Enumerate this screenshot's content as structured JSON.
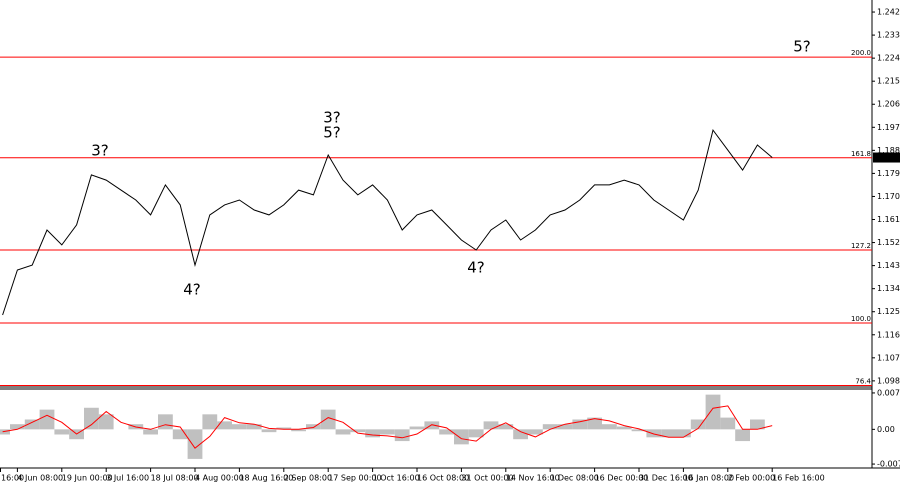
{
  "chart_data": [
    {
      "type": "line",
      "ylim": [
        1.0964,
        1.2471
      ],
      "yticks": [
        1.2424,
        1.2334,
        1.2244,
        1.2154,
        1.2064,
        1.1974,
        1.1884,
        1.1794,
        1.1704,
        1.1614,
        1.1524,
        1.1434,
        1.1344,
        1.1254,
        1.1164,
        1.1074,
        1.0984
      ],
      "current_price": 1.1856,
      "level_color": "#ff0000",
      "levels": [
        {
          "label": "200.0",
          "value": 1.2248
        },
        {
          "label": "161.8",
          "value": 1.1855
        },
        {
          "label": "127.2",
          "value": 1.1495
        },
        {
          "label": "100.0",
          "value": 1.121
        },
        {
          "label": "76.4",
          "value": 1.0966
        }
      ],
      "annotations": [
        {
          "text": "3?",
          "color": "#0000ff"
        },
        {
          "text": "4?",
          "color": "#0000ff"
        },
        {
          "text": "3?",
          "color": "#ff0000"
        },
        {
          "text": "5?",
          "color": "#0000ff"
        },
        {
          "text": "4?",
          "color": "#ff0000"
        },
        {
          "text": "5?",
          "color": "#ff0000"
        }
      ],
      "series": [
        {
          "color": "#000000",
          "values": [
            null,
            null,
            1.1241,
            1.1417,
            1.1436,
            1.1573,
            1.1515,
            1.1593,
            1.1788,
            1.1768,
            1.1729,
            1.169,
            1.1632,
            1.1749,
            1.1671,
            1.1436,
            1.1632,
            1.1671,
            1.169,
            1.1651,
            1.1632,
            1.1671,
            1.1729,
            1.171,
            1.1866,
            1.1768,
            1.171,
            1.1749,
            1.169,
            1.1573,
            1.1632,
            1.1651,
            1.1593,
            1.1534,
            1.1495,
            1.1573,
            1.1612,
            1.1534,
            1.1573,
            1.1632,
            1.1651,
            1.169,
            1.1749,
            1.1749,
            1.1768,
            1.1749,
            1.169,
            1.1651,
            1.1612,
            1.1729,
            1.1963,
            1.1885,
            1.1807,
            1.1905,
            1.1856
          ]
        }
      ]
    },
    {
      "type": "bar",
      "categories": [
        "16:00",
        null,
        null,
        "4 Jun 08:00",
        null,
        null,
        "19 Jun 00:00",
        null,
        null,
        "3 Jul 16:00",
        null,
        null,
        "18 Jul 08:00",
        null,
        null,
        "4 Aug 00:00",
        null,
        null,
        "18 Aug 16:00",
        null,
        null,
        "2 Sep 08:00",
        null,
        null,
        "17 Sep 00:00",
        null,
        null,
        "1 Oct 16:00",
        null,
        null,
        "16 Oct 08:00",
        null,
        null,
        "31 Oct 00:00",
        null,
        null,
        "14 Nov 16:00",
        null,
        null,
        "1 Dec 08:00",
        null,
        null,
        "16 Dec 00:00",
        null,
        null,
        "31 Dec 16:00",
        null,
        null,
        "16 Jan 08:00",
        null,
        null,
        "2 Feb 00:00",
        null,
        null,
        "16 Feb 16:00"
      ],
      "ylim": [
        -0.00824,
        0.0086
      ],
      "yticks": [
        0.00776,
        {
          "value": 0,
          "label": "0.00"
        },
        -0.0074
      ],
      "series": [
        {
          "color": "#c0c0c0",
          "values": [
            null,
            null,
            -0.0011,
            0.0011,
            0.0021,
            0.0042,
            -0.0011,
            -0.0021,
            0.0046,
            0.0032,
            0,
            0.0011,
            -0.0011,
            0.0032,
            -0.0021,
            -0.0063,
            0.0032,
            0.0017,
            0.0011,
            0.0011,
            -0.0006,
            0.0004,
            -0.0004,
            0.0011,
            0.0042,
            -0.0011,
            -0.0006,
            -0.0017,
            -0.0011,
            -0.0025,
            0.0006,
            0.0017,
            -0.0011,
            -0.0032,
            -0.0017,
            0.0017,
            0.0011,
            -0.0021,
            -0.0011,
            0.0011,
            0.0011,
            0.0021,
            0.0025,
            0.0011,
            0.0006,
            -0.0004,
            -0.0017,
            -0.0017,
            -0.0017,
            0.0021,
            0.0074,
            0.0025,
            -0.0025,
            0.0021,
            0
          ]
        },
        {
          "color": "#ff0000",
          "values": [
            null,
            null,
            -0.0005,
            0,
            0.0015,
            0.003,
            0.0015,
            -0.001,
            0.001,
            0.0038,
            0.0015,
            0.0005,
            0,
            0.001,
            0.0005,
            -0.004,
            -0.0015,
            0.0025,
            0.0014,
            0.0011,
            0.0002,
            0,
            0,
            0.0004,
            0.0025,
            0.0015,
            -0.0008,
            -0.0012,
            -0.0014,
            -0.0018,
            -0.001,
            0.001,
            0.0003,
            -0.002,
            -0.0025,
            0,
            0.0014,
            -0.0005,
            -0.0016,
            0,
            0.0011,
            0.0016,
            0.0023,
            0.0018,
            0.0008,
            0.0001,
            -0.001,
            -0.0017,
            -0.0017,
            0.0002,
            0.0045,
            0.005,
            0,
            0,
            0.0008
          ]
        }
      ]
    }
  ]
}
